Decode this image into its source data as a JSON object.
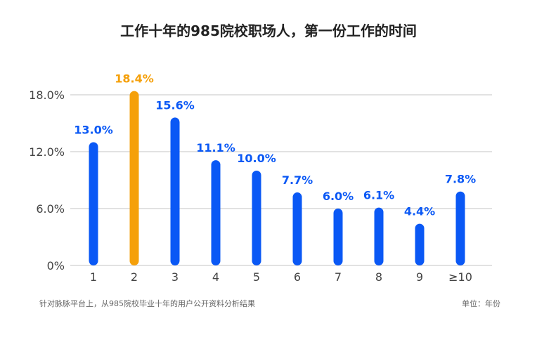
{
  "title": "工作十年的985院校职场人，第一份工作的时间",
  "footer": {
    "source": "针对脉脉平台上，从985院校毕业十年的用户公开资料分析结果",
    "unit": "单位：年份"
  },
  "colors": {
    "bar": "#0a58f5",
    "highlight": "#f5a00a",
    "grid": "#d9d9d9",
    "axis_text": "#444444"
  },
  "chart_data": {
    "type": "bar",
    "categories": [
      "1",
      "2",
      "3",
      "4",
      "5",
      "6",
      "7",
      "8",
      "9",
      "≥10"
    ],
    "values": [
      13.0,
      18.4,
      15.6,
      11.1,
      10.0,
      7.7,
      6.0,
      6.1,
      4.4,
      7.8
    ],
    "data_labels": [
      "13.0%",
      "18.4%",
      "15.6%",
      "11.1%",
      "10.0%",
      "7.7%",
      "6.0%",
      "6.1%",
      "4.4%",
      "7.8%"
    ],
    "highlight_index": 1,
    "ylim": [
      0,
      18
    ],
    "yticks": [
      0,
      6,
      12,
      18
    ],
    "ytick_labels": [
      "0%",
      "6.0%",
      "12.0%",
      "18.0%"
    ],
    "grid": true
  }
}
